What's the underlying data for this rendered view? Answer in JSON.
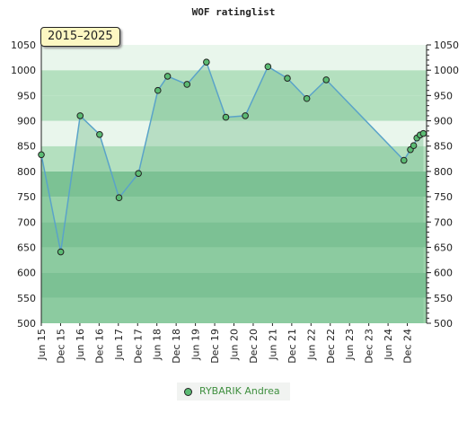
{
  "chart_data": {
    "type": "line",
    "title": "WOF ratinglist",
    "period_label": "2015–2025",
    "ylim": [
      500,
      1050
    ],
    "yticks": [
      500,
      550,
      600,
      650,
      700,
      750,
      800,
      850,
      900,
      950,
      1000,
      1050
    ],
    "xticks": [
      "Jun 15",
      "Dec 15",
      "Jun 16",
      "Dec 16",
      "Jun 17",
      "Dec 17",
      "Jun 18",
      "Dec 18",
      "Jun 19",
      "Dec 19",
      "Jun 20",
      "Dec 20",
      "Jun 21",
      "Dec 21",
      "Jun 22",
      "Dec 22",
      "Jun 23",
      "Dec 23",
      "Jun 24",
      "Dec 24"
    ],
    "legend_position": "bottom",
    "grid": false,
    "colors": {
      "line": "#5aa3c9",
      "marker": "#5bbb73",
      "band_dark": "#7cc294",
      "band_mid": "#9ad3a9",
      "band_light": "#b4e0bf",
      "band_pale": "#e9f6ec",
      "legend_text": "#3f8f3f"
    },
    "series": [
      {
        "name": "RYBARIK Andrea",
        "points": [
          {
            "x": "2015-06",
            "y": 833
          },
          {
            "x": "2015-12",
            "y": 641
          },
          {
            "x": "2016-06",
            "y": 910
          },
          {
            "x": "2016-12",
            "y": 873
          },
          {
            "x": "2017-06",
            "y": 748
          },
          {
            "x": "2017-12",
            "y": 796
          },
          {
            "x": "2018-06",
            "y": 960
          },
          {
            "x": "2018-09",
            "y": 988
          },
          {
            "x": "2019-03",
            "y": 972
          },
          {
            "x": "2019-09",
            "y": 1016
          },
          {
            "x": "2020-03",
            "y": 907
          },
          {
            "x": "2020-09",
            "y": 910
          },
          {
            "x": "2021-04",
            "y": 1007
          },
          {
            "x": "2021-10",
            "y": 984
          },
          {
            "x": "2022-04",
            "y": 944
          },
          {
            "x": "2022-10",
            "y": 981
          },
          {
            "x": "2024-10",
            "y": 822
          },
          {
            "x": "2024-12",
            "y": 843
          },
          {
            "x": "2025-01",
            "y": 851
          },
          {
            "x": "2025-02",
            "y": 866
          },
          {
            "x": "2025-03",
            "y": 872
          },
          {
            "x": "2025-04",
            "y": 875
          }
        ]
      }
    ]
  }
}
